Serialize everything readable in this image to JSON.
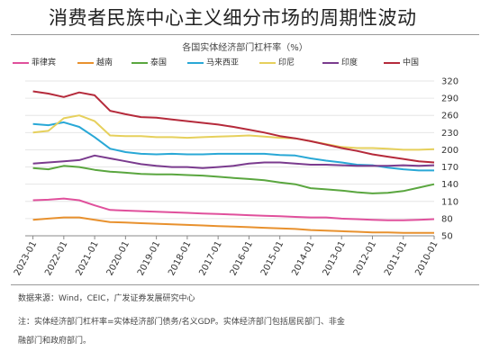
{
  "headline": "消费者民族中心主义细分市场的周期性波动",
  "footer": {
    "source": "数据来源：Wind，CEIC，广发证券发展研究中心",
    "note_line1": "注：实体经济部门杠杆率=实体经济部门债务/名义GDP。实体经济部门包括居民部门、非金",
    "note_line2": "融部门和政府部门。"
  },
  "chart_data": {
    "type": "line",
    "title": "各国实体经济部门杠杆率（%）",
    "yticks": [
      50,
      80,
      110,
      140,
      170,
      200,
      230,
      260,
      290,
      320
    ],
    "ylim": [
      50,
      320
    ],
    "x_reversed": true,
    "xticks": [
      "2023-01",
      "2022-01",
      "2021-01",
      "2020-01",
      "2019-01",
      "2018-01",
      "2017-01",
      "2016-01",
      "2015-01",
      "2014-01",
      "2013-01",
      "2012-01",
      "2011-01",
      "2010-01"
    ],
    "x": [
      2023.0,
      2022.5,
      2022.0,
      2021.5,
      2021.0,
      2020.5,
      2020.0,
      2019.5,
      2019.0,
      2018.5,
      2018.0,
      2017.5,
      2017.0,
      2016.5,
      2016.0,
      2015.5,
      2015.0,
      2014.5,
      2014.0,
      2013.5,
      2013.0,
      2012.5,
      2012.0,
      2011.5,
      2011.0,
      2010.5,
      2010.0
    ],
    "series": [
      {
        "name": "菲律宾",
        "color": "#e0509c",
        "values": [
          112,
          113,
          115,
          112,
          103,
          95,
          94,
          93,
          92,
          91,
          90,
          89,
          88,
          87,
          86,
          85,
          84,
          83,
          82,
          82,
          80,
          79,
          78,
          77,
          77,
          78,
          79
        ]
      },
      {
        "name": "越南",
        "color": "#e8912e",
        "values": [
          78,
          80,
          82,
          82,
          78,
          74,
          73,
          72,
          71,
          70,
          69,
          68,
          67,
          66,
          65,
          64,
          63,
          62,
          60,
          59,
          58,
          57,
          56,
          56,
          55,
          55,
          55
        ]
      },
      {
        "name": "泰国",
        "color": "#5aa63f",
        "values": [
          168,
          166,
          172,
          170,
          165,
          162,
          160,
          158,
          157,
          157,
          156,
          155,
          153,
          151,
          149,
          147,
          143,
          140,
          133,
          131,
          129,
          126,
          124,
          125,
          128,
          134,
          140
        ]
      },
      {
        "name": "马来西亚",
        "color": "#29a8d6",
        "values": [
          245,
          243,
          248,
          240,
          222,
          202,
          196,
          193,
          192,
          193,
          192,
          192,
          193,
          193,
          193,
          193,
          191,
          190,
          185,
          181,
          178,
          174,
          173,
          169,
          166,
          164,
          164
        ]
      },
      {
        "name": "印尼",
        "color": "#e6d05c",
        "values": [
          230,
          233,
          255,
          260,
          250,
          225,
          224,
          224,
          222,
          222,
          221,
          222,
          223,
          224,
          225,
          223,
          221,
          220,
          215,
          210,
          205,
          203,
          203,
          202,
          200,
          200,
          201
        ]
      },
      {
        "name": "印度",
        "color": "#7a3b8e",
        "values": [
          176,
          178,
          180,
          182,
          190,
          185,
          180,
          175,
          172,
          170,
          170,
          168,
          170,
          172,
          176,
          178,
          178,
          176,
          174,
          174,
          173,
          172,
          172,
          172,
          173,
          172,
          173
        ]
      },
      {
        "name": "中国",
        "color": "#b52a3b",
        "values": [
          302,
          298,
          292,
          300,
          295,
          268,
          262,
          257,
          256,
          253,
          250,
          247,
          244,
          240,
          235,
          230,
          224,
          220,
          215,
          209,
          203,
          198,
          192,
          188,
          184,
          180,
          178
        ]
      }
    ]
  }
}
